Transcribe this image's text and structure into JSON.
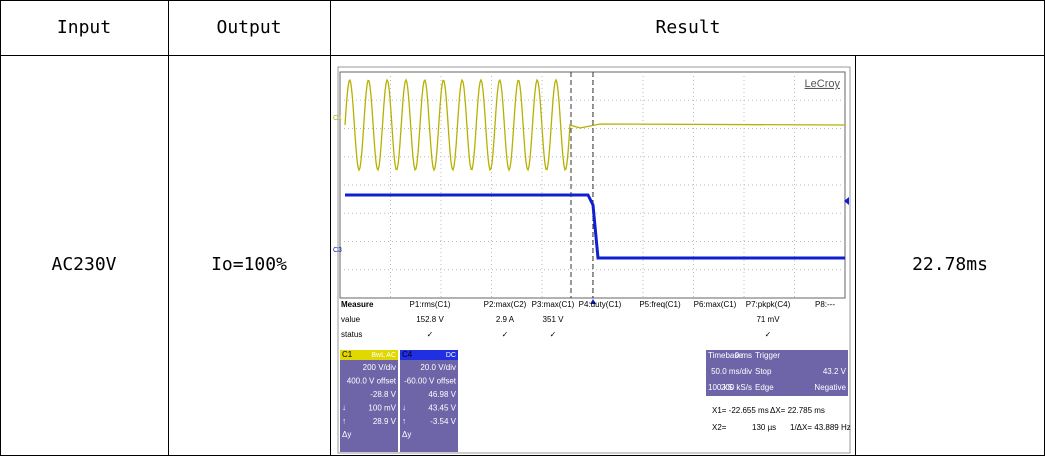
{
  "table": {
    "header": [
      "Input",
      "Output",
      "Result"
    ],
    "row": {
      "input": "AC230V",
      "output": "Io=100%",
      "result": "22.78ms"
    }
  },
  "scope": {
    "brand": "LeCroy",
    "trace_labels": [
      "C1",
      "C3"
    ],
    "measure": {
      "title": "Measure",
      "row_labels": [
        "value",
        "status"
      ],
      "columns": [
        {
          "name": "P1:rms(C1)",
          "value": "152.8 V",
          "status": "✓"
        },
        {
          "name": "P2:max(C2)",
          "value": "2.9 A",
          "status": "✓"
        },
        {
          "name": "P3:max(C1)",
          "value": "351 V",
          "status": "✓"
        },
        {
          "name": "P4:duty(C1)"
        },
        {
          "name": "P5:freq(C1)"
        },
        {
          "name": "P6:max(C1)"
        },
        {
          "name": "P7:pkpk(C4)",
          "value": "71 mV",
          "status": "✓"
        },
        {
          "name": "P8:---"
        }
      ]
    },
    "channels": [
      {
        "label": "C1",
        "badge": "BwL AC",
        "lines": [
          "200 V/div",
          "400.0 V offset",
          "-28.8 V",
          "100 mV",
          "28.9 V"
        ],
        "symbols": [
          "↓",
          "↑",
          "Δy"
        ]
      },
      {
        "label": "C4",
        "badge": "DC",
        "lines": [
          "20.0 V/div",
          "-60.00 V offset",
          "46.98 V",
          "43.45 V",
          "-3.54 V"
        ],
        "symbols": [
          "↓",
          "↑",
          "Δy"
        ]
      }
    ],
    "timebase": {
      "title": "Timebase",
      "delay": "0 ms",
      "trigger": "Trigger",
      "scale": "50.0 ms/div",
      "mode": "Stop",
      "level": "43.2 V",
      "samples": "100 kS",
      "rate": "200 kS/s",
      "type": "Edge",
      "slope": "Negative"
    },
    "cursors": [
      "X1= -22.655 ms",
      "ΔX= 22.785 ms",
      "X2=",
      "130 µs",
      "1/ΔX= 43.889 Hz"
    ]
  }
}
